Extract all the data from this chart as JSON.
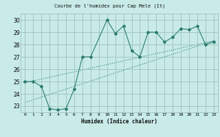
{
  "title": "Courbe de l'humidex pour Cap Mele (It)",
  "xlabel": "Humidex (Indice chaleur)",
  "bg_color": "#c8ebe8",
  "grid_color": "#9bbfbb",
  "line_color": "#2a7a6f",
  "xlim": [
    -0.5,
    23.5
  ],
  "ylim": [
    22.5,
    30.5
  ],
  "xticks": [
    0,
    1,
    2,
    3,
    4,
    5,
    6,
    7,
    8,
    9,
    10,
    11,
    12,
    13,
    14,
    15,
    16,
    17,
    18,
    19,
    20,
    21,
    22,
    23
  ],
  "yticks": [
    23,
    24,
    25,
    26,
    27,
    28,
    29,
    30
  ],
  "data_x": [
    0,
    1,
    2,
    3,
    4,
    5,
    6,
    7,
    8,
    10,
    11,
    12,
    13,
    14,
    15,
    16,
    17,
    18,
    19,
    20,
    21,
    22,
    23
  ],
  "data_y": [
    25,
    25,
    24.6,
    22.8,
    22.7,
    22.8,
    24.4,
    27.0,
    27.0,
    30.0,
    28.9,
    29.5,
    27.5,
    27.0,
    29.0,
    29.0,
    28.2,
    28.6,
    29.3,
    29.2,
    29.5,
    28.0,
    28.2
  ],
  "trend1_x": [
    0,
    23
  ],
  "trend1_y": [
    24.9,
    28.3
  ],
  "trend2_x": [
    0,
    23
  ],
  "trend2_y": [
    23.3,
    28.3
  ]
}
